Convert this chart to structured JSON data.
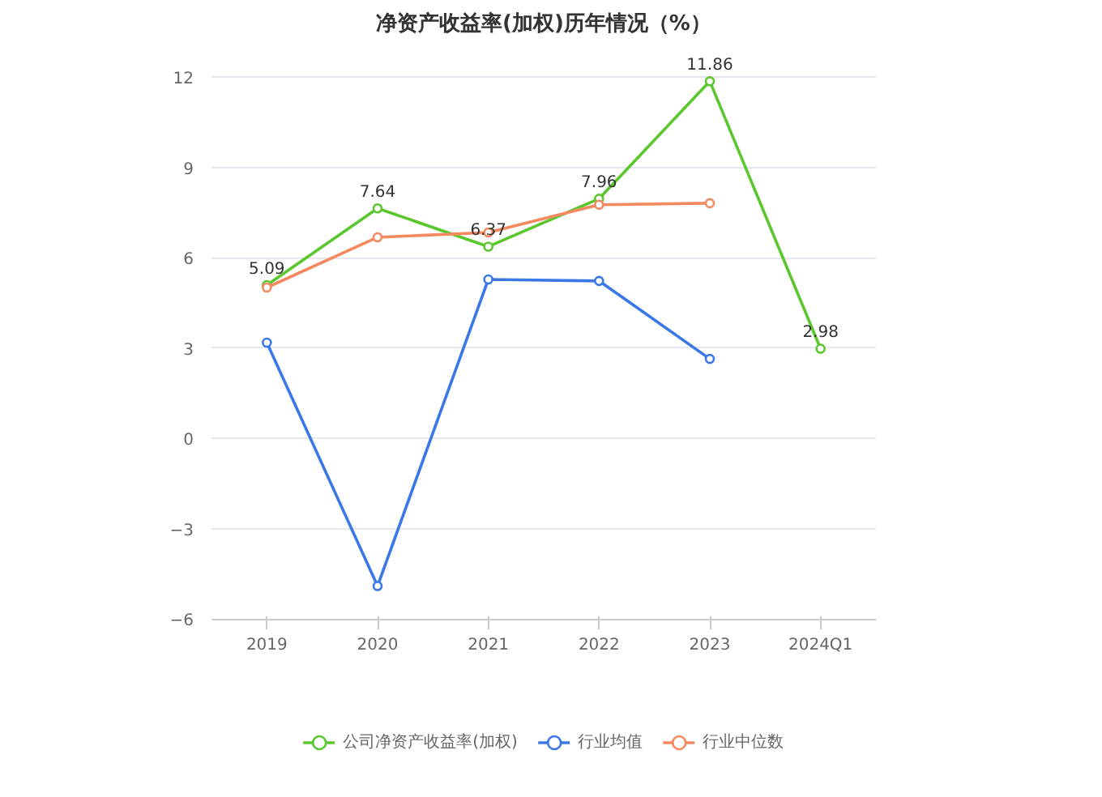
{
  "chart_data": {
    "type": "line",
    "title": "净资产收益率(加权)历年情况（%）",
    "categories": [
      "2019",
      "2020",
      "2021",
      "2022",
      "2023",
      "2024Q1"
    ],
    "series": [
      {
        "name": "公司净资产收益率(加权)",
        "color": "#5bc72f",
        "values": [
          5.09,
          7.64,
          6.37,
          7.96,
          11.86,
          2.98
        ],
        "value_labels": [
          "5.09",
          "7.64",
          "6.37",
          "7.96",
          "11.86",
          "2.98"
        ]
      },
      {
        "name": "行业均值",
        "color": "#3b78e7",
        "values": [
          3.18,
          -4.9,
          5.28,
          5.23,
          2.64,
          null
        ]
      },
      {
        "name": "行业中位数",
        "color": "#f4895f",
        "values": [
          5.01,
          6.68,
          6.84,
          7.76,
          7.81,
          null
        ]
      }
    ],
    "ylim": [
      -6,
      12
    ],
    "yticks": [
      -6,
      -3,
      0,
      3,
      6,
      9,
      12
    ],
    "grid": "y",
    "legend": "bottom",
    "marker": "circle",
    "line_style": "solid"
  }
}
